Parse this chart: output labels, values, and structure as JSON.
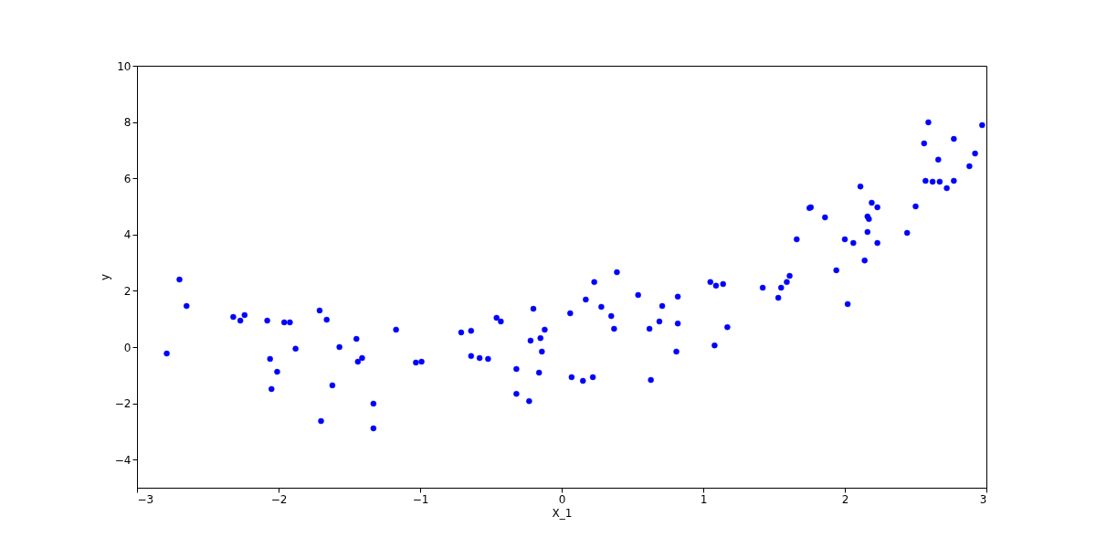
{
  "chart_data": {
    "type": "scatter",
    "xlabel": "X_1",
    "ylabel": "y",
    "xlim": [
      -3,
      3
    ],
    "xticks": [
      -3,
      -2,
      -1,
      0,
      1,
      2,
      3
    ],
    "ylim": [
      -5,
      10
    ],
    "yticks": [
      -4,
      -2,
      0,
      2,
      4,
      6,
      8,
      10
    ],
    "grid": false,
    "marker": "circle",
    "series": [
      {
        "color": "#0000ff",
        "x": [
          -2.79,
          -2.7,
          -2.65,
          -2.32,
          -2.27,
          -2.24,
          -2.08,
          -2.06,
          -2.05,
          -2.01,
          -1.96,
          -1.92,
          -1.88,
          -1.71,
          -1.7,
          -1.66,
          -1.62,
          -1.57,
          -1.45,
          -1.44,
          -1.41,
          -1.33,
          -1.33,
          -1.17,
          -1.03,
          -0.99,
          -0.71,
          -0.64,
          -0.64,
          -0.58,
          -0.52,
          -0.46,
          -0.43,
          -0.32,
          -0.32,
          -0.23,
          -0.22,
          -0.2,
          -0.16,
          -0.15,
          -0.14,
          -0.12,
          0.06,
          0.07,
          0.15,
          0.17,
          0.22,
          0.23,
          0.28,
          0.35,
          0.37,
          0.39,
          0.54,
          0.62,
          0.63,
          0.69,
          0.71,
          0.82,
          0.82,
          0.81,
          1.05,
          1.08,
          1.09,
          1.14,
          1.17,
          1.42,
          1.53,
          1.55,
          1.59,
          1.61,
          1.66,
          1.75,
          1.76,
          1.86,
          1.94,
          2.0,
          2.02,
          2.06,
          2.11,
          2.14,
          2.16,
          2.16,
          2.17,
          2.19,
          2.23,
          2.23,
          2.44,
          2.5,
          2.56,
          2.57,
          2.59,
          2.62,
          2.66,
          2.67,
          2.72,
          2.77,
          2.77,
          2.88,
          2.92,
          2.97
        ],
        "values": [
          -0.23,
          2.4,
          1.46,
          1.07,
          0.94,
          1.14,
          0.94,
          -0.42,
          -1.49,
          -0.88,
          0.88,
          0.88,
          -0.06,
          1.3,
          -2.63,
          0.97,
          -1.36,
          0.0,
          0.29,
          -0.52,
          -0.39,
          -2.01,
          -2.89,
          0.62,
          -0.55,
          -0.52,
          0.52,
          0.58,
          -0.32,
          -0.39,
          -0.42,
          1.04,
          0.91,
          -0.78,
          -1.66,
          -1.92,
          0.23,
          1.36,
          -0.91,
          0.32,
          -0.16,
          0.62,
          1.2,
          -1.07,
          -1.2,
          1.69,
          -1.07,
          2.31,
          1.43,
          1.1,
          0.65,
          2.66,
          1.85,
          0.65,
          -1.17,
          0.91,
          1.46,
          1.79,
          0.84,
          -0.16,
          2.31,
          0.06,
          2.18,
          2.24,
          0.71,
          2.11,
          1.75,
          2.11,
          2.31,
          2.53,
          3.83,
          4.94,
          4.97,
          4.61,
          2.73,
          3.83,
          1.53,
          3.7,
          5.71,
          3.08,
          4.09,
          4.64,
          4.55,
          5.13,
          4.97,
          3.7,
          4.06,
          5.0,
          7.24,
          5.91,
          7.99,
          5.88,
          6.66,
          5.88,
          5.65,
          5.91,
          7.4,
          6.43,
          6.88,
          7.89
        ]
      }
    ]
  }
}
